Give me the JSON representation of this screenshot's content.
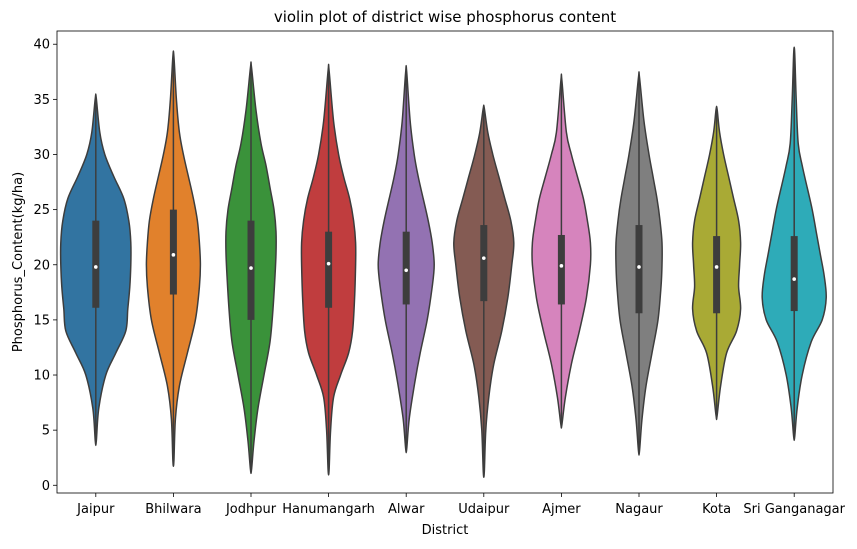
{
  "chart_data": {
    "type": "violin",
    "title": "violin plot of district wise phosphorus content",
    "xlabel": "District",
    "ylabel": "Phosphorus_Content(kg/ha)",
    "ylim": [
      -0.7,
      41.2
    ],
    "yticks": [
      0,
      5,
      10,
      15,
      20,
      25,
      30,
      35,
      40
    ],
    "grid": false,
    "categories": [
      "Jaipur",
      "Bhilwara",
      "Jodhpur",
      "Hanumangarh",
      "Alwar",
      "Udaipur",
      "Ajmer",
      "Nagaur",
      "Kota",
      "Sri Ganganagar"
    ],
    "colors": [
      "#3274a1",
      "#e1812c",
      "#3a923a",
      "#c03d3e",
      "#9372b2",
      "#845b53",
      "#d684bd",
      "#7f7f7f",
      "#a9aa35",
      "#2eabb8"
    ],
    "series": [
      {
        "min": 4.0,
        "q1": 16.1,
        "median": 19.8,
        "q3": 24.0,
        "max": 35.1,
        "density": [
          [
            4.0,
            0.5
          ],
          [
            7,
            3
          ],
          [
            10,
            10
          ],
          [
            12,
            20
          ],
          [
            14,
            30
          ],
          [
            16,
            32
          ],
          [
            18,
            34
          ],
          [
            20,
            35
          ],
          [
            22,
            35
          ],
          [
            24,
            33
          ],
          [
            26,
            28
          ],
          [
            28,
            18
          ],
          [
            30,
            9
          ],
          [
            32,
            4
          ],
          [
            35.1,
            0.5
          ]
        ]
      },
      {
        "min": 2.2,
        "q1": 17.3,
        "median": 20.9,
        "q3": 25.0,
        "max": 38.9,
        "density": [
          [
            2.2,
            0.5
          ],
          [
            6,
            2
          ],
          [
            9,
            6
          ],
          [
            12,
            14
          ],
          [
            15,
            22
          ],
          [
            18,
            26
          ],
          [
            20,
            27
          ],
          [
            22,
            26
          ],
          [
            24,
            24
          ],
          [
            26,
            20
          ],
          [
            28,
            15
          ],
          [
            30,
            10
          ],
          [
            32,
            6
          ],
          [
            35,
            3
          ],
          [
            38.9,
            0.5
          ]
        ]
      },
      {
        "min": 1.4,
        "q1": 15.0,
        "median": 19.7,
        "q3": 24.0,
        "max": 37.9,
        "density": [
          [
            1.4,
            0.5
          ],
          [
            4,
            3
          ],
          [
            7,
            7
          ],
          [
            10,
            13
          ],
          [
            13,
            19
          ],
          [
            16,
            22
          ],
          [
            19,
            24
          ],
          [
            21,
            25
          ],
          [
            23,
            25
          ],
          [
            25,
            23
          ],
          [
            27,
            19
          ],
          [
            29,
            15
          ],
          [
            31,
            10
          ],
          [
            34,
            5
          ],
          [
            37.9,
            0.5
          ]
        ]
      },
      {
        "min": 1.4,
        "q1": 16.1,
        "median": 20.1,
        "q3": 23.0,
        "max": 37.6,
        "density": [
          [
            1.4,
            0.5
          ],
          [
            5,
            2
          ],
          [
            8,
            5
          ],
          [
            10,
            12
          ],
          [
            12,
            20
          ],
          [
            14,
            24
          ],
          [
            17,
            26
          ],
          [
            20,
            27
          ],
          [
            22,
            27
          ],
          [
            24,
            25
          ],
          [
            26,
            21
          ],
          [
            28,
            15
          ],
          [
            30,
            10
          ],
          [
            33,
            5
          ],
          [
            37.6,
            0.5
          ]
        ]
      },
      {
        "min": 3.3,
        "q1": 16.4,
        "median": 19.5,
        "q3": 23.0,
        "max": 37.5,
        "density": [
          [
            3.3,
            0.5
          ],
          [
            6,
            3
          ],
          [
            9,
            8
          ],
          [
            12,
            14
          ],
          [
            15,
            21
          ],
          [
            18,
            26
          ],
          [
            20,
            28
          ],
          [
            22,
            26
          ],
          [
            24,
            22
          ],
          [
            26,
            17
          ],
          [
            28,
            12
          ],
          [
            30,
            8
          ],
          [
            33,
            4
          ],
          [
            37.5,
            0.5
          ]
        ]
      },
      {
        "min": 1.2,
        "q1": 16.7,
        "median": 20.6,
        "q3": 23.6,
        "max": 34.2,
        "density": [
          [
            1.2,
            0.5
          ],
          [
            5,
            2
          ],
          [
            8,
            5
          ],
          [
            11,
            10
          ],
          [
            14,
            18
          ],
          [
            17,
            24
          ],
          [
            20,
            28
          ],
          [
            22,
            30
          ],
          [
            24,
            27
          ],
          [
            26,
            21
          ],
          [
            28,
            15
          ],
          [
            30,
            9
          ],
          [
            32,
            4
          ],
          [
            34.2,
            0.5
          ]
        ]
      },
      {
        "min": 5.5,
        "q1": 16.4,
        "median": 19.9,
        "q3": 22.7,
        "max": 36.7,
        "density": [
          [
            5.5,
            0.5
          ],
          [
            8,
            4
          ],
          [
            11,
            10
          ],
          [
            14,
            18
          ],
          [
            17,
            25
          ],
          [
            20,
            29
          ],
          [
            22,
            29
          ],
          [
            24,
            26
          ],
          [
            26,
            22
          ],
          [
            28,
            16
          ],
          [
            30,
            10
          ],
          [
            32,
            5
          ],
          [
            36.7,
            0.5
          ]
        ]
      },
      {
        "min": 3.1,
        "q1": 15.6,
        "median": 19.8,
        "q3": 23.6,
        "max": 37.0,
        "density": [
          [
            3.1,
            0.5
          ],
          [
            6,
            3
          ],
          [
            9,
            7
          ],
          [
            12,
            13
          ],
          [
            15,
            19
          ],
          [
            18,
            22
          ],
          [
            20,
            23
          ],
          [
            22,
            23
          ],
          [
            24,
            21
          ],
          [
            26,
            18
          ],
          [
            28,
            14
          ],
          [
            30,
            10
          ],
          [
            33,
            5
          ],
          [
            37.0,
            0.5
          ]
        ]
      },
      {
        "min": 6.3,
        "q1": 15.6,
        "median": 19.8,
        "q3": 22.6,
        "max": 34.1,
        "density": [
          [
            6.3,
            0.5
          ],
          [
            9,
            4
          ],
          [
            12,
            10
          ],
          [
            14,
            20
          ],
          [
            16,
            24
          ],
          [
            18,
            22
          ],
          [
            20,
            23
          ],
          [
            22,
            24
          ],
          [
            24,
            22
          ],
          [
            26,
            17
          ],
          [
            28,
            12
          ],
          [
            30,
            7
          ],
          [
            32,
            3
          ],
          [
            34.1,
            0.5
          ]
        ]
      },
      {
        "min": 4.4,
        "q1": 15.8,
        "median": 18.7,
        "q3": 22.6,
        "max": 39.2,
        "density": [
          [
            4.4,
            0.5
          ],
          [
            7,
            3
          ],
          [
            10,
            8
          ],
          [
            13,
            17
          ],
          [
            15,
            28
          ],
          [
            17,
            32
          ],
          [
            19,
            30
          ],
          [
            21,
            26
          ],
          [
            23,
            22
          ],
          [
            25,
            18
          ],
          [
            27,
            13
          ],
          [
            29,
            8
          ],
          [
            31,
            4
          ],
          [
            35,
            2
          ],
          [
            39.2,
            0.5
          ]
        ]
      }
    ]
  }
}
